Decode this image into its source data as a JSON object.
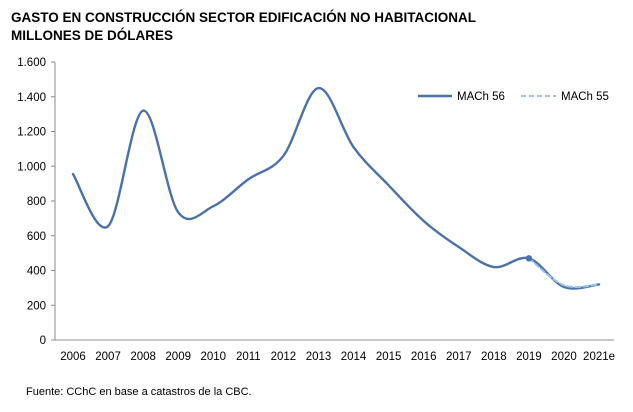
{
  "title_line1": "GASTO EN CONSTRUCCIÓN SECTOR EDIFICACIÓN NO HABITACIONAL",
  "title_line2": "MILLONES DE DÓLARES",
  "source": "Fuente: CChC en base a catastros de la CBC.",
  "chart_data": {
    "type": "line",
    "categories": [
      "2006",
      "2007",
      "2008",
      "2009",
      "2010",
      "2011",
      "2012",
      "2013",
      "2014",
      "2015",
      "2016",
      "2017",
      "2018",
      "2019",
      "2020",
      "2021e"
    ],
    "ylim": [
      0,
      1600
    ],
    "yticks": [
      0,
      200,
      400,
      600,
      800,
      1000,
      1200,
      1400,
      1600
    ],
    "ytick_labels": [
      "0",
      "200",
      "400",
      "600",
      "800",
      "1.000",
      "1.200",
      "1.400",
      "1.600"
    ],
    "grid": false,
    "legend_position": "top-right",
    "series": [
      {
        "name": "MACh 56",
        "color": "#4a72a8",
        "style": "solid",
        "values": [
          955,
          655,
          1320,
          735,
          770,
          925,
          1060,
          1450,
          1110,
          890,
          685,
          535,
          420,
          470,
          305,
          320
        ]
      },
      {
        "name": "MACh 55",
        "color": "#9dc3e6",
        "style": "dashed",
        "values": [
          null,
          null,
          null,
          null,
          null,
          null,
          null,
          null,
          null,
          null,
          null,
          null,
          null,
          470,
          315,
          320
        ]
      }
    ],
    "markers": [
      {
        "series": "MACh 56",
        "x": "2019",
        "y": 470
      }
    ]
  }
}
